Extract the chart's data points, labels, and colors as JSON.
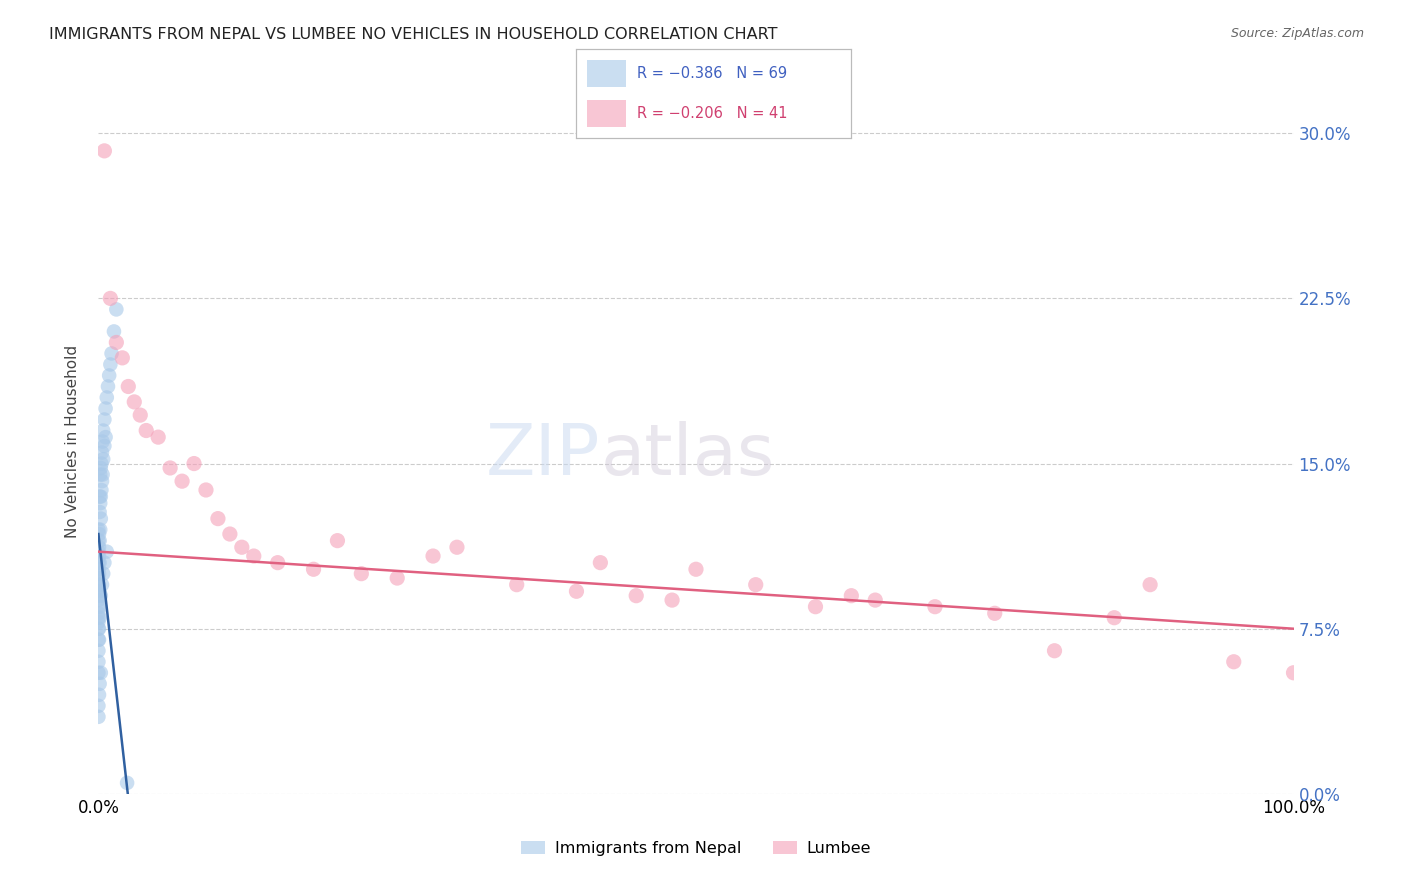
{
  "title": "IMMIGRANTS FROM NEPAL VS LUMBEE NO VEHICLES IN HOUSEHOLD CORRELATION CHART",
  "source": "Source: ZipAtlas.com",
  "ylabel": "No Vehicles in Household",
  "ytick_values": [
    0.0,
    7.5,
    15.0,
    22.5,
    30.0
  ],
  "xlim": [
    0.0,
    100.0
  ],
  "ylim": [
    0.0,
    32.0
  ],
  "blue_color": "#a8c8e8",
  "pink_color": "#f4a0b8",
  "blue_line_color": "#3060a0",
  "pink_line_color": "#e06080",
  "watermark_zip": "ZIP",
  "watermark_atlas": "atlas",
  "nepal_x": [
    0.0,
    0.0,
    0.0,
    0.0,
    0.0,
    0.0,
    0.0,
    0.0,
    0.0,
    0.0,
    0.0,
    0.0,
    0.0,
    0.0,
    0.0,
    0.05,
    0.05,
    0.05,
    0.05,
    0.05,
    0.1,
    0.1,
    0.1,
    0.1,
    0.1,
    0.15,
    0.15,
    0.15,
    0.2,
    0.2,
    0.2,
    0.25,
    0.25,
    0.3,
    0.3,
    0.35,
    0.35,
    0.4,
    0.4,
    0.5,
    0.5,
    0.6,
    0.6,
    0.7,
    0.8,
    0.9,
    1.0,
    1.1,
    1.3,
    1.5,
    0.0,
    0.0,
    0.0,
    0.0,
    0.05,
    0.05,
    0.1,
    0.15,
    0.2,
    0.3,
    0.4,
    0.5,
    0.7,
    0.0,
    0.0,
    0.05,
    0.1,
    0.2,
    2.4
  ],
  "nepal_y": [
    12.0,
    11.5,
    11.0,
    10.5,
    10.2,
    9.8,
    9.5,
    9.2,
    9.0,
    8.8,
    8.5,
    8.2,
    8.0,
    7.8,
    7.5,
    11.8,
    11.2,
    10.8,
    10.0,
    9.5,
    13.5,
    12.8,
    11.5,
    10.5,
    9.2,
    14.5,
    13.2,
    12.0,
    14.8,
    13.5,
    12.5,
    15.0,
    13.8,
    15.5,
    14.2,
    16.0,
    14.5,
    16.5,
    15.2,
    17.0,
    15.8,
    17.5,
    16.2,
    18.0,
    18.5,
    19.0,
    19.5,
    20.0,
    21.0,
    22.0,
    7.0,
    6.5,
    6.0,
    5.5,
    7.5,
    7.0,
    8.0,
    8.5,
    9.0,
    9.5,
    10.0,
    10.5,
    11.0,
    4.0,
    3.5,
    4.5,
    5.0,
    5.5,
    0.5
  ],
  "lumbee_x": [
    0.5,
    1.0,
    1.5,
    2.0,
    2.5,
    3.0,
    3.5,
    4.0,
    5.0,
    6.0,
    7.0,
    8.0,
    9.0,
    10.0,
    11.0,
    12.0,
    13.0,
    15.0,
    18.0,
    20.0,
    22.0,
    25.0,
    28.0,
    30.0,
    35.0,
    40.0,
    42.0,
    45.0,
    48.0,
    50.0,
    55.0,
    60.0,
    63.0,
    65.0,
    70.0,
    75.0,
    80.0,
    85.0,
    88.0,
    95.0,
    100.0
  ],
  "lumbee_y": [
    29.2,
    22.5,
    20.5,
    19.8,
    18.5,
    17.8,
    17.2,
    16.5,
    16.2,
    14.8,
    14.2,
    15.0,
    13.8,
    12.5,
    11.8,
    11.2,
    10.8,
    10.5,
    10.2,
    11.5,
    10.0,
    9.8,
    10.8,
    11.2,
    9.5,
    9.2,
    10.5,
    9.0,
    8.8,
    10.2,
    9.5,
    8.5,
    9.0,
    8.8,
    8.5,
    8.2,
    6.5,
    8.0,
    9.5,
    6.0,
    5.5
  ],
  "nepal_trendline_x": [
    0.0,
    2.5
  ],
  "nepal_trendline_y": [
    11.8,
    -0.2
  ],
  "lumbee_trendline_x": [
    0.0,
    100.0
  ],
  "lumbee_trendline_y": [
    11.0,
    7.5
  ]
}
